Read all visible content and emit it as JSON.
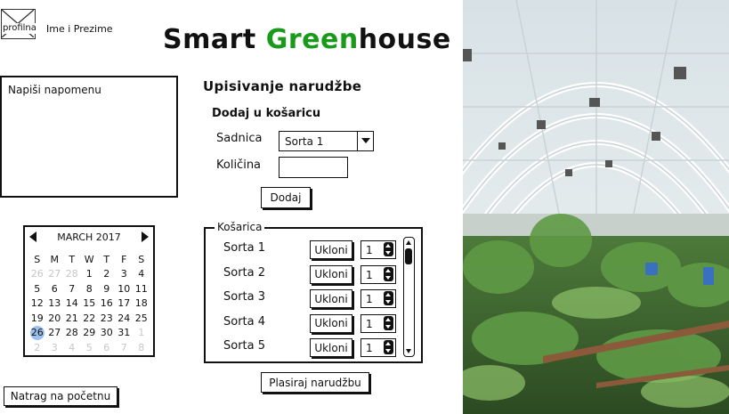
{
  "header": {
    "avatar_label": "profilna",
    "user_name": "Ime i Prezime",
    "brand_part1": "Smart ",
    "brand_part2": "Green",
    "brand_part3": "house",
    "brand_green": "#1a9a1a"
  },
  "note": {
    "placeholder": "Napiši napomenu"
  },
  "calendar": {
    "month": "MARCH 2017",
    "weekdays": [
      "S",
      "M",
      "T",
      "W",
      "T",
      "F",
      "S"
    ],
    "selected_day": "26"
  },
  "nav": {
    "back_label": "Natrag na početnu"
  },
  "order": {
    "title": "Upisivanje narudžbe",
    "add_title": "Dodaj u košaricu",
    "plant_label": "Sadnica",
    "plant_value": "Sorta 1",
    "qty_label": "Količina",
    "qty_value": "",
    "add_button": "Dodaj"
  },
  "cart": {
    "legend": "Košarica",
    "remove_label": "Ukloni",
    "items": [
      {
        "name": "Sorta 1",
        "qty": "1"
      },
      {
        "name": "Sorta 2",
        "qty": "1"
      },
      {
        "name": "Sorta 3",
        "qty": "1"
      },
      {
        "name": "Sorta 4",
        "qty": "1"
      },
      {
        "name": "Sorta 5",
        "qty": "1"
      }
    ],
    "place_order": "Plasiraj narudžbu"
  }
}
